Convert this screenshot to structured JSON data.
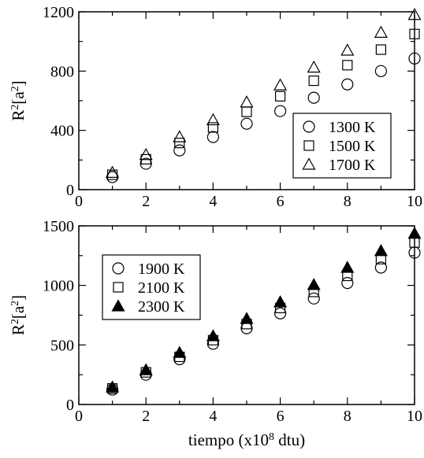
{
  "chart_data": [
    {
      "type": "scatter",
      "xlim": [
        0,
        10
      ],
      "ylim": [
        0,
        1200
      ],
      "xticks": [
        0,
        2,
        4,
        6,
        8,
        10
      ],
      "yticks": [
        0,
        400,
        800,
        1200
      ],
      "ylabel": "R²[a²]",
      "xlabel": "",
      "legend_position": "bottom-right",
      "series": [
        {
          "name": "1300 K",
          "marker": "circle-open",
          "x": [
            1,
            2,
            3,
            4,
            5,
            6,
            7,
            8,
            9,
            10
          ],
          "y": [
            85,
            175,
            265,
            355,
            445,
            530,
            620,
            710,
            800,
            885
          ]
        },
        {
          "name": "1500 K",
          "marker": "square-open",
          "x": [
            1,
            2,
            3,
            4,
            5,
            6,
            7,
            8,
            9,
            10
          ],
          "y": [
            100,
            205,
            315,
            420,
            525,
            630,
            735,
            840,
            945,
            1050
          ]
        },
        {
          "name": "1700 K",
          "marker": "triangle-open",
          "x": [
            1,
            2,
            3,
            4,
            5,
            6,
            7,
            8,
            9,
            10
          ],
          "y": [
            115,
            235,
            355,
            470,
            590,
            705,
            825,
            940,
            1060,
            1180
          ]
        }
      ]
    },
    {
      "type": "scatter",
      "xlim": [
        0,
        10
      ],
      "ylim": [
        0,
        1500
      ],
      "xticks": [
        0,
        2,
        4,
        6,
        8,
        10
      ],
      "yticks": [
        0,
        500,
        1000,
        1500
      ],
      "ylabel": "R²[a²]",
      "xlabel": "tiempo (x10⁸ dtu)",
      "legend_position": "top-left",
      "series": [
        {
          "name": "1900 K",
          "marker": "circle-open",
          "x": [
            1,
            2,
            3,
            4,
            5,
            6,
            7,
            8,
            9,
            10
          ],
          "y": [
            125,
            250,
            380,
            510,
            640,
            765,
            890,
            1020,
            1150,
            1275
          ]
        },
        {
          "name": "2100 K",
          "marker": "square-open",
          "x": [
            1,
            2,
            3,
            4,
            5,
            6,
            7,
            8,
            9,
            10
          ],
          "y": [
            135,
            270,
            400,
            540,
            675,
            810,
            945,
            1080,
            1220,
            1360
          ]
        },
        {
          "name": "2300 K",
          "marker": "triangle-filled",
          "x": [
            1,
            2,
            3,
            4,
            5,
            6,
            7,
            8,
            9,
            10
          ],
          "y": [
            145,
            290,
            435,
            575,
            720,
            860,
            1005,
            1150,
            1290,
            1435
          ]
        }
      ]
    }
  ]
}
